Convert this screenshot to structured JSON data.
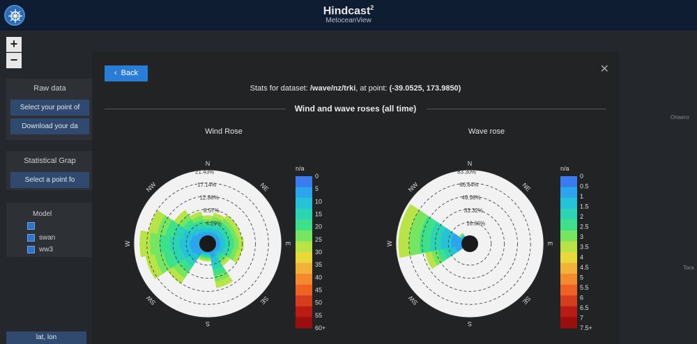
{
  "header": {
    "title": "Hindcast",
    "title_sup": "2",
    "subtitle": "MetoceanView"
  },
  "map": {
    "zoom_in": "+",
    "zoom_out": "−",
    "raw_data": {
      "title": "Raw data",
      "btn1": "Select your point of",
      "btn2": "Download your da"
    },
    "stat_graphs": {
      "title": "Statistical Grap",
      "btn1": "Select a point fo"
    },
    "model": {
      "title": "Model",
      "items": [
        "",
        "swan",
        "ww3"
      ]
    },
    "latlon": "lat, lon",
    "place1": "Onaero",
    "place2": "Tara"
  },
  "modal": {
    "back_label": "Back",
    "close_icon": "close-icon",
    "stats_prefix": "Stats for dataset: ",
    "dataset": "/wave/nz/trki",
    "stats_mid": ", at point: ",
    "point": "(-39.0525, 173.9850)",
    "section_title": "Wind and wave roses (all time)"
  },
  "chart_data": [
    {
      "type": "polar-bar",
      "title": "Wind Rose",
      "directions": [
        "N",
        "NE",
        "E",
        "SE",
        "S",
        "SW",
        "W",
        "NW"
      ],
      "radial_ticks": [
        "4.29%",
        "8.57%",
        "12.86%",
        "17.14%",
        "21.43%"
      ],
      "radial_max": 21.43,
      "colorbar_title": "n/a",
      "colorbar_labels": [
        "0",
        "5",
        "10",
        "15",
        "20",
        "25",
        "30",
        "35",
        "40",
        "45",
        "50",
        "55",
        "60+"
      ],
      "sectors": [
        {
          "direction": "N",
          "total": 6.5
        },
        {
          "direction": "NNE",
          "total": 7.5
        },
        {
          "direction": "NE",
          "total": 8.5
        },
        {
          "direction": "ENE",
          "total": 8.5
        },
        {
          "direction": "E",
          "total": 9.0
        },
        {
          "direction": "ESE",
          "total": 8.5
        },
        {
          "direction": "SE",
          "total": 6.0
        },
        {
          "direction": "SSE",
          "total": 12.0
        },
        {
          "direction": "S",
          "total": 3.0
        },
        {
          "direction": "SSW",
          "total": 3.0
        },
        {
          "direction": "SW",
          "total": 13.0
        },
        {
          "direction": "WSW",
          "total": 18.0
        },
        {
          "direction": "W",
          "total": 19.5
        },
        {
          "direction": "WNW",
          "total": 17.0
        },
        {
          "direction": "NW",
          "total": 10.5
        },
        {
          "direction": "NNW",
          "total": 8.0
        }
      ]
    },
    {
      "type": "polar-bar",
      "title": "Wave rose",
      "directions": [
        "N",
        "NE",
        "E",
        "SE",
        "S",
        "SW",
        "W",
        "NW"
      ],
      "radial_ticks": [
        "16.66%",
        "33.32%",
        "49.98%",
        "66.64%",
        "83.30%"
      ],
      "radial_max": 83.3,
      "colorbar_title": "n/a",
      "colorbar_labels": [
        "0",
        "0.5",
        "1",
        "1.5",
        "2",
        "2.5",
        "3",
        "3.5",
        "4",
        "4.5",
        "5",
        "5.5",
        "6",
        "6.5",
        "7",
        "7.5+"
      ],
      "sectors": [
        {
          "direction": "N",
          "total": 0
        },
        {
          "direction": "NNE",
          "total": 0
        },
        {
          "direction": "NE",
          "total": 0
        },
        {
          "direction": "ENE",
          "total": 0
        },
        {
          "direction": "E",
          "total": 0
        },
        {
          "direction": "ESE",
          "total": 0
        },
        {
          "direction": "SE",
          "total": 0
        },
        {
          "direction": "SSE",
          "total": 0
        },
        {
          "direction": "S",
          "total": 0
        },
        {
          "direction": "SSW",
          "total": 0
        },
        {
          "direction": "SW",
          "total": 0
        },
        {
          "direction": "WSW",
          "total": 47.0
        },
        {
          "direction": "W",
          "total": 80.0
        },
        {
          "direction": "WNW",
          "total": 80.0
        },
        {
          "direction": "NW",
          "total": 6.0
        },
        {
          "direction": "NNW",
          "total": 0
        }
      ]
    }
  ],
  "colors": {
    "accent": "#2a7dd6",
    "colorbar": [
      "#3a7cf0",
      "#2aa5ee",
      "#26c2d8",
      "#2cd4b4",
      "#3fe08a",
      "#76e660",
      "#b8e448",
      "#e8d83a",
      "#f2b23a",
      "#f38a2e",
      "#ee6226",
      "#d63c1e",
      "#b81c14",
      "#9a0e0e"
    ]
  }
}
